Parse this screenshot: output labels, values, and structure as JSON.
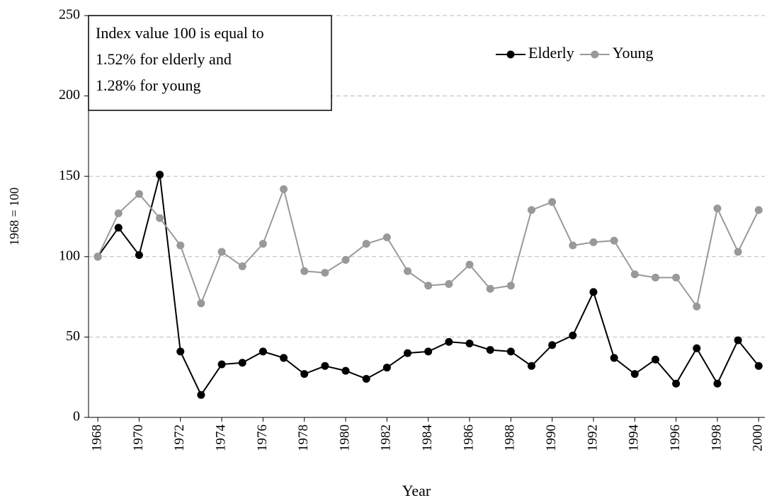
{
  "chart_data": {
    "type": "line",
    "x": [
      1968,
      1969,
      1970,
      1971,
      1972,
      1973,
      1974,
      1975,
      1976,
      1977,
      1978,
      1979,
      1980,
      1981,
      1982,
      1983,
      1984,
      1985,
      1986,
      1987,
      1988,
      1989,
      1990,
      1991,
      1992,
      1993,
      1994,
      1995,
      1996,
      1997,
      1998,
      1999,
      2000
    ],
    "series": [
      {
        "name": "Elderly",
        "color": "#000000",
        "values": [
          100,
          118,
          101,
          151,
          41,
          14,
          33,
          34,
          41,
          37,
          27,
          32,
          29,
          24,
          31,
          40,
          41,
          47,
          46,
          42,
          41,
          32,
          45,
          51,
          78,
          37,
          27,
          36,
          21,
          43,
          21,
          48,
          32
        ]
      },
      {
        "name": "Young",
        "color": "#999999",
        "values": [
          100,
          127,
          139,
          124,
          107,
          71,
          103,
          94,
          108,
          142,
          91,
          90,
          98,
          108,
          112,
          91,
          82,
          83,
          95,
          80,
          82,
          129,
          134,
          107,
          109,
          110,
          89,
          87,
          87,
          69,
          130,
          103,
          129
        ]
      }
    ],
    "xlabel": "Year",
    "ylabel": "1968 = 100",
    "annotation": [
      "Index value 100 is equal to",
      "1.52%  for elderly and",
      "1.28%  for young"
    ],
    "xlim": [
      1967.55,
      2000.3
    ],
    "xticks": [
      1968,
      1970,
      1972,
      1974,
      1976,
      1978,
      1980,
      1982,
      1984,
      1986,
      1988,
      1990,
      1992,
      1994,
      1996,
      1998,
      2000
    ],
    "ylim": [
      0,
      250
    ],
    "yticks": [
      0,
      50,
      100,
      150,
      200,
      250
    ],
    "grid": true,
    "legend": "top-right"
  }
}
